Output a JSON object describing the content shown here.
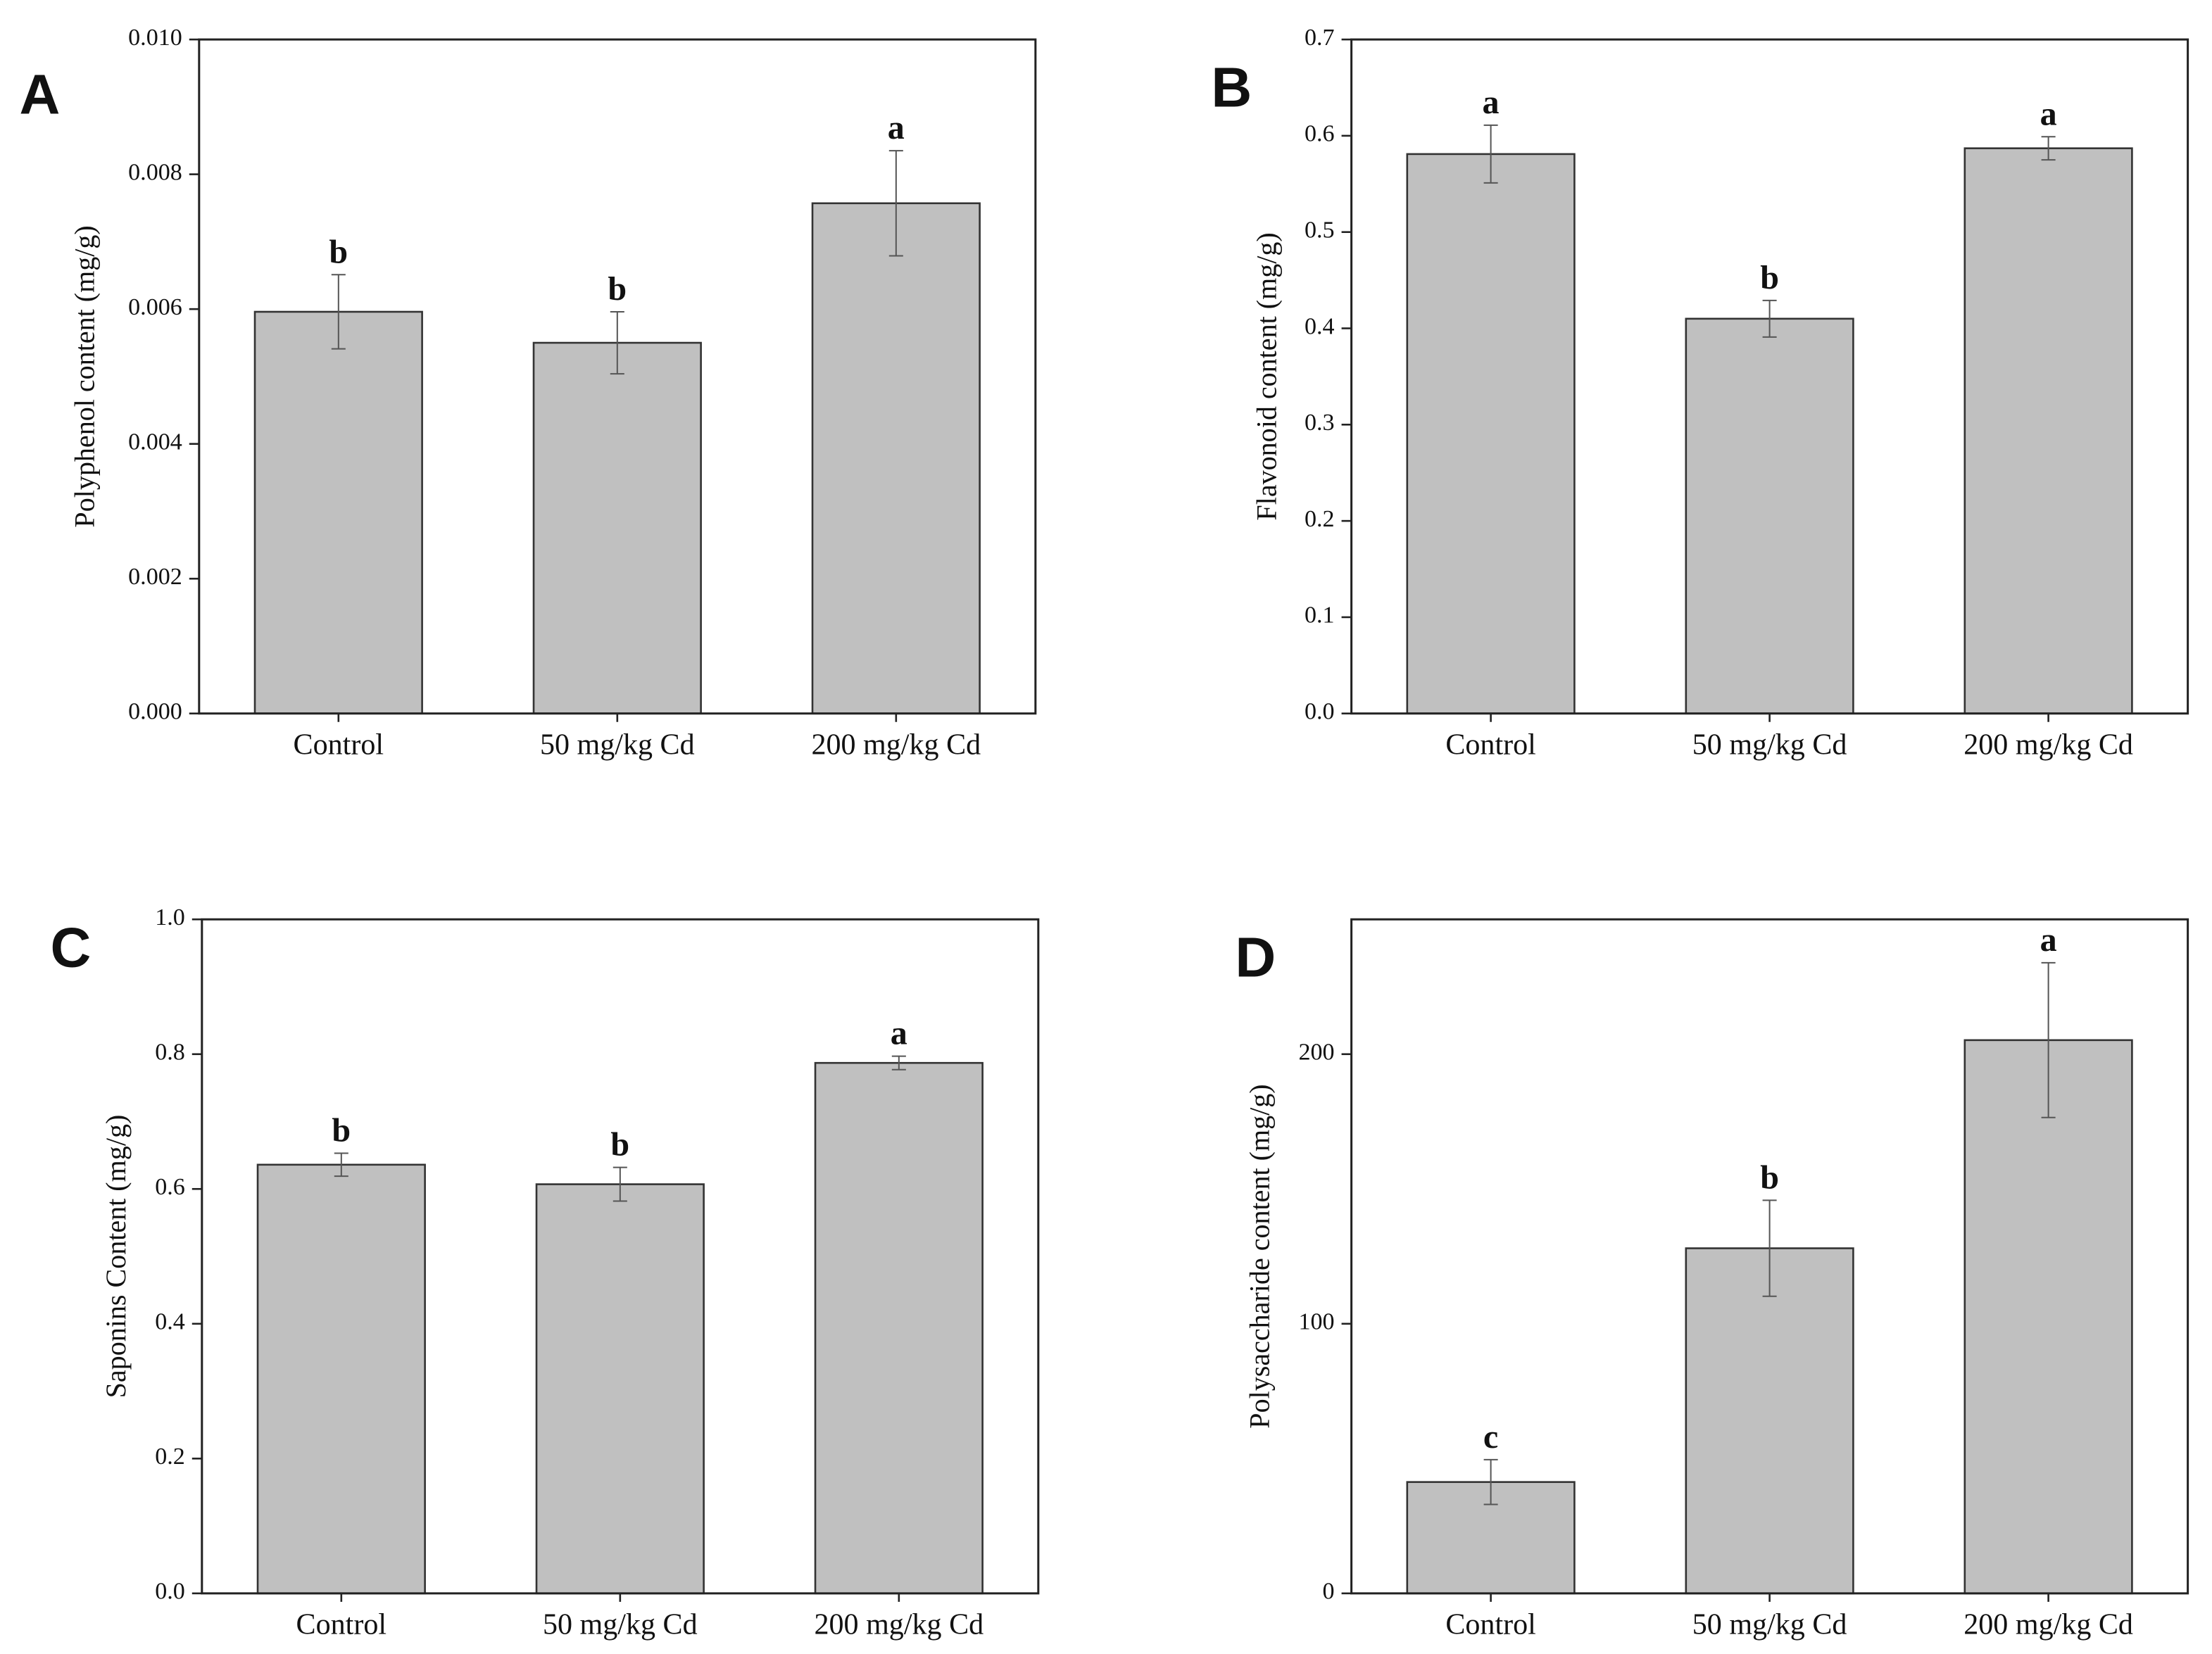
{
  "chart_data": [
    {
      "type": "bar",
      "panel": "A",
      "ylabel": "Polyphenol content (mg/g)",
      "categories": [
        "Control",
        "50 mg/kg Cd",
        "200 mg/kg Cd"
      ],
      "values": [
        0.00596,
        0.0055,
        0.00757
      ],
      "errors": [
        0.00055,
        0.00046,
        0.00078
      ],
      "annotations": [
        "b",
        "b",
        "a"
      ],
      "color": "#c0c0c0",
      "ylim": [
        0,
        0.01
      ],
      "yticks": [
        {
          "value": 0,
          "label": "0.000"
        },
        {
          "value": 0.002,
          "label": "0.002"
        },
        {
          "value": 0.004,
          "label": "0.004"
        },
        {
          "value": 0.006,
          "label": "0.006"
        },
        {
          "value": 0.008,
          "label": "0.008"
        },
        {
          "value": 0.01,
          "label": "0.010"
        }
      ]
    },
    {
      "type": "bar",
      "panel": "B",
      "ylabel": "Flavonoid content (mg/g)",
      "categories": [
        "Control",
        "50 mg/kg Cd",
        "200 mg/kg Cd"
      ],
      "values": [
        0.581,
        0.41,
        0.587
      ],
      "errors": [
        0.03,
        0.019,
        0.012
      ],
      "annotations": [
        "a",
        "b",
        "a"
      ],
      "color": "#c0c0c0",
      "ylim": [
        0,
        0.7
      ],
      "yticks": [
        {
          "value": 0,
          "label": "0.0"
        },
        0.1,
        0.2,
        0.3,
        0.4,
        0.5,
        0.6,
        0.7
      ]
    },
    {
      "type": "bar",
      "panel": "C",
      "ylabel": "Saponins Content (mg/g)",
      "categories": [
        "Control",
        "50 mg/kg Cd",
        "200 mg/kg Cd"
      ],
      "values": [
        0.636,
        0.607,
        0.787
      ],
      "errors": [
        0.017,
        0.025,
        0.01
      ],
      "annotations": [
        "b",
        "b",
        "a"
      ],
      "color": "#c0c0c0",
      "ylim": [
        0,
        1
      ],
      "yticks": [
        {
          "value": 0,
          "label": "0.0"
        },
        0.2,
        0.4,
        0.6,
        0.8,
        {
          "value": 1,
          "label": "1.0"
        }
      ]
    },
    {
      "type": "bar",
      "panel": "D",
      "ylabel": "Polysaccharide content (mg/g)",
      "categories": [
        "Control",
        "50 mg/kg Cd",
        "200 mg/kg Cd"
      ],
      "values": [
        41.3,
        128,
        205.2
      ],
      "errors": [
        8.3,
        17.8,
        28.7
      ],
      "annotations": [
        "c",
        "b",
        "a"
      ],
      "color": "#c0c0c0",
      "ylim": [
        0,
        250
      ],
      "yticks": [
        0,
        100,
        200
      ]
    }
  ]
}
